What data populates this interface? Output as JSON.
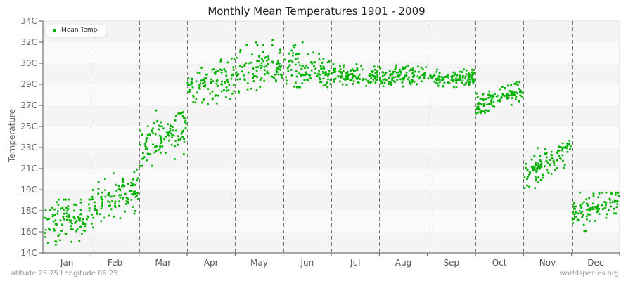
{
  "title": "Monthly Mean Temperatures 1901 - 2009",
  "footer": {
    "location": "Latitude 25.75 Longitude 86.25",
    "source": "worldspecies.org"
  },
  "legend": {
    "label": "Mean Temp",
    "color": "#00b300"
  },
  "colors": {
    "point": "#00b300",
    "band_dark": "#f4f4f4",
    "band_light": "#fafafa",
    "divider": "#777777",
    "axis": "#555555"
  },
  "chart_data": {
    "type": "scatter",
    "title": "Monthly Mean Temperatures 1901 - 2009",
    "xlabel": "",
    "ylabel": "Temperature",
    "y_tick_labels": [
      "34C",
      "32C",
      "30C",
      "29C",
      "27C",
      "25C",
      "23C",
      "21C",
      "19C",
      "18C",
      "16C",
      "14C"
    ],
    "ylim": [
      14,
      34
    ],
    "categories": [
      "Jan",
      "Feb",
      "Mar",
      "Apr",
      "May",
      "Jun",
      "Jul",
      "Aug",
      "Sep",
      "Oct",
      "Nov",
      "Dec"
    ],
    "grid": "horizontal bands, dashed vertical month dividers",
    "legend_position": "top-left",
    "series": [
      {
        "name": "Mean Temp",
        "points_per_month": 109,
        "monthly_summary": [
          {
            "month": "Jan",
            "start_mean": 16.2,
            "end_mean": 17.6,
            "spread": 1.0,
            "min": 14.7,
            "max": 18.6
          },
          {
            "month": "Feb",
            "start_mean": 18.0,
            "end_mean": 19.6,
            "spread": 0.9,
            "min": 16.2,
            "max": 21.2
          },
          {
            "month": "Mar",
            "start_mean": 22.8,
            "end_mean": 25.2,
            "spread": 1.0,
            "min": 21.5,
            "max": 26.9
          },
          {
            "month": "Apr",
            "start_mean": 28.2,
            "end_mean": 29.2,
            "spread": 0.9,
            "min": 25.9,
            "max": 30.8
          },
          {
            "month": "May",
            "start_mean": 29.3,
            "end_mean": 30.2,
            "spread": 1.0,
            "min": 27.8,
            "max": 32.6
          },
          {
            "month": "Jun",
            "start_mean": 30.0,
            "end_mean": 29.8,
            "spread": 0.9,
            "min": 28.3,
            "max": 32.2
          },
          {
            "month": "Jul",
            "start_mean": 29.3,
            "end_mean": 29.3,
            "spread": 0.4,
            "min": 28.4,
            "max": 30.3
          },
          {
            "month": "Aug",
            "start_mean": 29.2,
            "end_mean": 29.4,
            "spread": 0.4,
            "min": 28.1,
            "max": 30.5
          },
          {
            "month": "Sep",
            "start_mean": 29.0,
            "end_mean": 29.2,
            "spread": 0.4,
            "min": 28.3,
            "max": 29.9
          },
          {
            "month": "Oct",
            "start_mean": 26.6,
            "end_mean": 28.2,
            "spread": 0.5,
            "min": 25.0,
            "max": 29.4
          },
          {
            "month": "Nov",
            "start_mean": 20.6,
            "end_mean": 23.0,
            "spread": 0.6,
            "min": 19.6,
            "max": 24.4
          },
          {
            "month": "Dec",
            "start_mean": 17.2,
            "end_mean": 18.7,
            "spread": 0.7,
            "min": 15.3,
            "max": 19.2
          }
        ]
      }
    ]
  }
}
